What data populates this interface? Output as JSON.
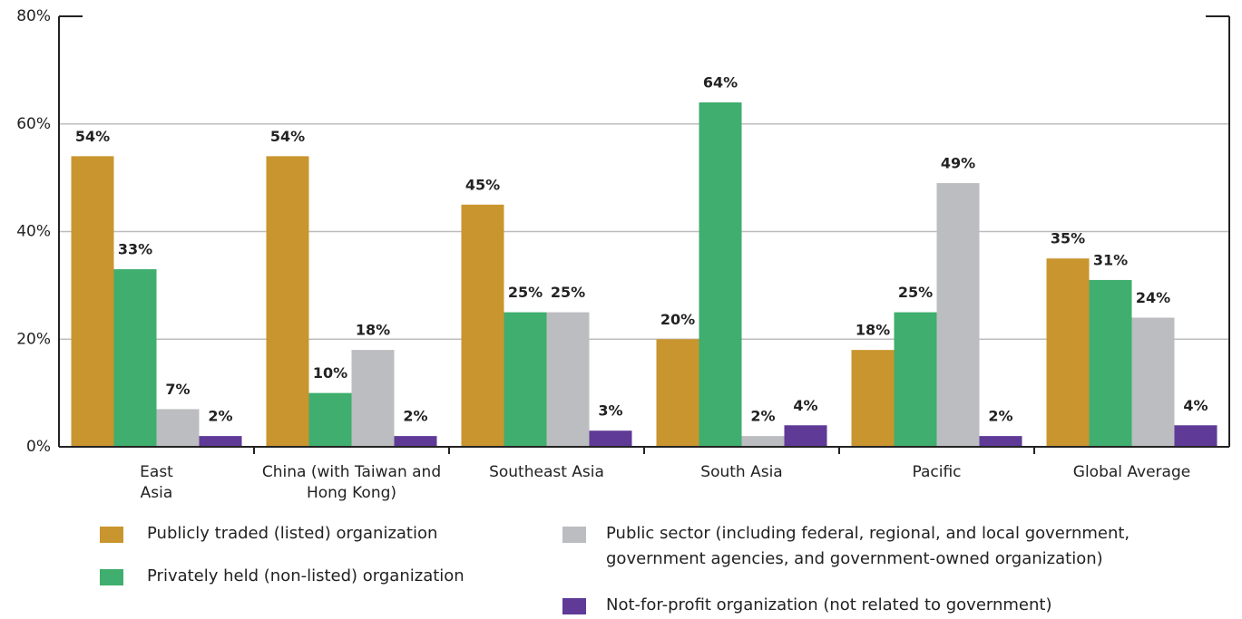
{
  "chart_data": {
    "type": "bar",
    "categories": [
      "East Asia",
      "China (with Taiwan and Hong Kong)",
      "Southeast Asia",
      "South Asia",
      "Pacific",
      "Global Average"
    ],
    "series": [
      {
        "name": "Publicly traded (listed) organization",
        "color": "#c9952e",
        "values": [
          54,
          54,
          45,
          20,
          18,
          35
        ],
        "value_labels": [
          "54%",
          "54%",
          "45%",
          "20%",
          "18%",
          "35%"
        ]
      },
      {
        "name": "Privately held (non-listed) organization",
        "color": "#3fae6e",
        "values": [
          33,
          10,
          25,
          64,
          25,
          31
        ],
        "value_labels": [
          "33%",
          "10%",
          "25%",
          "64%",
          "25%",
          "31%"
        ]
      },
      {
        "name": "Public sector (including federal, regional, and local government, government agencies, and government-owned organization)",
        "color": "#bcbdc0",
        "values": [
          7,
          18,
          25,
          2,
          49,
          24
        ],
        "value_labels": [
          "7%",
          "18%",
          "25%",
          "2%",
          "49%",
          "24%"
        ]
      },
      {
        "name": "Not-for-profit organization (not related to government)",
        "color": "#5f3a97",
        "values": [
          2,
          2,
          3,
          4,
          2,
          4
        ],
        "value_labels": [
          "2%",
          "2%",
          "3%",
          "4%",
          "2%",
          "4%"
        ]
      }
    ],
    "ylim": [
      0,
      80
    ],
    "yticks": [
      {
        "value": 0,
        "label": "0%"
      },
      {
        "value": 20,
        "label": "20%"
      },
      {
        "value": 40,
        "label": "40%"
      },
      {
        "value": 60,
        "label": "60%"
      },
      {
        "value": 80,
        "label": "80%"
      }
    ],
    "grid": true
  }
}
